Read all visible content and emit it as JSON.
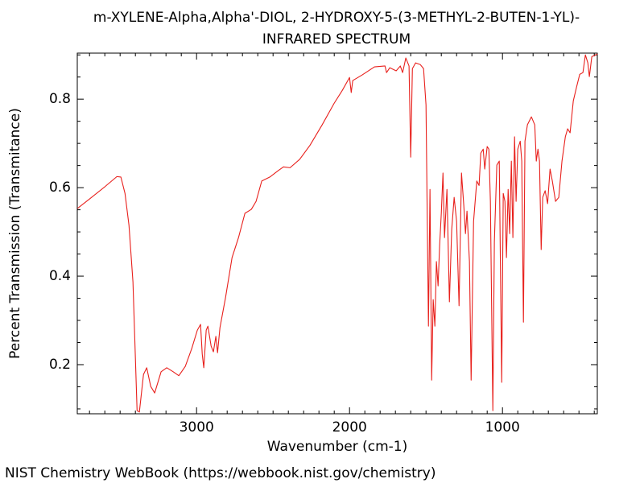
{
  "chart_data": {
    "type": "line",
    "title": [
      "m-XYLENE-Alpha,Alpha'-DIOL, 2-HYDROXY-5-(3-METHYL-2-BUTEN-1-YL)-",
      "INFRARED SPECTRUM"
    ],
    "x_label": "Wavenumber (cm-1)",
    "y_label": "Percent Transmission (Transmitance)",
    "color": "#e8201c",
    "xlim": [
      3780,
      380
    ],
    "ylim": [
      0.089,
      0.904
    ],
    "xticks": [
      3000,
      2000,
      1000
    ],
    "yticks": [
      0.2,
      0.4,
      0.6,
      0.8
    ],
    "xminorticks": [
      3700,
      3600,
      3500,
      3400,
      3300,
      3200,
      3100,
      2900,
      2800,
      2700,
      2600,
      2500,
      2400,
      2300,
      2200,
      2100,
      1900,
      1800,
      1700,
      1600,
      1500,
      1400,
      1300,
      1200,
      1100,
      900,
      800,
      700,
      600,
      500,
      400
    ],
    "yminorticks": [
      0.1,
      0.15,
      0.25,
      0.3,
      0.35,
      0.45,
      0.5,
      0.55,
      0.65,
      0.7,
      0.75,
      0.85,
      0.9
    ],
    "x": [
      3779,
      3705,
      3600,
      3521,
      3495,
      3468,
      3442,
      3416,
      3389,
      3374,
      3347,
      3326,
      3300,
      3274,
      3232,
      3195,
      3153,
      3116,
      3074,
      3032,
      2995,
      2974,
      2963,
      2953,
      2937,
      2926,
      2905,
      2890,
      2874,
      2863,
      2847,
      2811,
      2768,
      2726,
      2684,
      2642,
      2611,
      2574,
      2521,
      2468,
      2432,
      2389,
      2326,
      2258,
      2179,
      2100,
      2047,
      2000,
      1989,
      1979,
      1916,
      1837,
      1768,
      1758,
      1737,
      1695,
      1668,
      1653,
      1632,
      1611,
      1600,
      1589,
      1568,
      1537,
      1516,
      1500,
      1484,
      1474,
      1463,
      1453,
      1442,
      1432,
      1421,
      1411,
      1400,
      1389,
      1379,
      1363,
      1347,
      1332,
      1316,
      1300,
      1284,
      1268,
      1253,
      1242,
      1232,
      1216,
      1205,
      1189,
      1168,
      1153,
      1142,
      1126,
      1116,
      1100,
      1089,
      1079,
      1063,
      1053,
      1037,
      1021,
      1005,
      995,
      984,
      974,
      963,
      953,
      942,
      932,
      921,
      911,
      900,
      884,
      874,
      863,
      853,
      837,
      811,
      789,
      779,
      768,
      758,
      747,
      737,
      721,
      705,
      689,
      674,
      653,
      632,
      611,
      589,
      574,
      558,
      537,
      516,
      495,
      474,
      458,
      442,
      432,
      416,
      379
    ],
    "values": [
      0.553,
      0.573,
      0.602,
      0.625,
      0.624,
      0.587,
      0.515,
      0.387,
      0.096,
      0.093,
      0.178,
      0.193,
      0.151,
      0.136,
      0.184,
      0.193,
      0.184,
      0.175,
      0.196,
      0.236,
      0.278,
      0.291,
      0.224,
      0.193,
      0.278,
      0.287,
      0.242,
      0.229,
      0.264,
      0.227,
      0.284,
      0.351,
      0.442,
      0.487,
      0.542,
      0.551,
      0.569,
      0.615,
      0.624,
      0.638,
      0.647,
      0.645,
      0.664,
      0.696,
      0.742,
      0.791,
      0.82,
      0.849,
      0.815,
      0.842,
      0.855,
      0.873,
      0.875,
      0.86,
      0.871,
      0.864,
      0.875,
      0.86,
      0.893,
      0.875,
      0.669,
      0.869,
      0.882,
      0.878,
      0.869,
      0.787,
      0.287,
      0.596,
      0.165,
      0.347,
      0.287,
      0.433,
      0.378,
      0.469,
      0.542,
      0.633,
      0.487,
      0.596,
      0.342,
      0.505,
      0.578,
      0.524,
      0.333,
      0.633,
      0.56,
      0.496,
      0.547,
      0.433,
      0.165,
      0.524,
      0.615,
      0.605,
      0.678,
      0.687,
      0.642,
      0.693,
      0.687,
      0.569,
      0.096,
      0.478,
      0.651,
      0.66,
      0.16,
      0.587,
      0.569,
      0.442,
      0.596,
      0.496,
      0.66,
      0.487,
      0.715,
      0.569,
      0.687,
      0.705,
      0.66,
      0.296,
      0.705,
      0.742,
      0.76,
      0.742,
      0.66,
      0.687,
      0.66,
      0.46,
      0.578,
      0.593,
      0.564,
      0.642,
      0.615,
      0.569,
      0.578,
      0.66,
      0.715,
      0.733,
      0.724,
      0.796,
      0.827,
      0.856,
      0.86,
      0.9,
      0.882,
      0.851,
      0.896,
      0.902
    ]
  },
  "footer": "NIST Chemistry WebBook (https://webbook.nist.gov/chemistry)"
}
